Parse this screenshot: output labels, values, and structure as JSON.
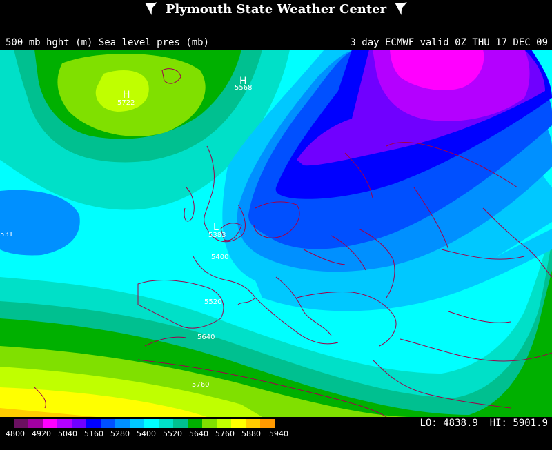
{
  "header": {
    "title": "Plymouth State Weather Center",
    "icon_left": "tornado-icon",
    "icon_right": "tornado-icon"
  },
  "subheader": {
    "left": "500 mb hght (m) Sea level pres (mb)",
    "right": "3 day ECMWF valid 0Z THU 17 DEC 09"
  },
  "map": {
    "field": "500 mb geopotential height",
    "region": "Europe / North Atlantic",
    "contour_labels": [
      {
        "text": "5722",
        "symbol": "H"
      },
      {
        "text": "5568",
        "symbol": "H"
      },
      {
        "text": "531",
        "symbol": ""
      },
      {
        "text": "5383",
        "symbol": "L"
      },
      {
        "text": "5400",
        "symbol": ""
      },
      {
        "text": "5520",
        "symbol": ""
      },
      {
        "text": "5640",
        "symbol": ""
      },
      {
        "text": "5760",
        "symbol": ""
      }
    ],
    "colors": {
      "background_land": "#00ffff",
      "borders": "#a0004a"
    }
  },
  "legend": {
    "ticks": [
      "4800",
      "4920",
      "5040",
      "5160",
      "5280",
      "5400",
      "5520",
      "5640",
      "5760",
      "5880",
      "5940"
    ],
    "colors": [
      "#6a1060",
      "#a000a0",
      "#ff00ff",
      "#b400ff",
      "#7000ff",
      "#0000ff",
      "#0050ff",
      "#0090ff",
      "#00c8ff",
      "#00ffff",
      "#00e0c8",
      "#00c090",
      "#00b000",
      "#80e000",
      "#c0ff00",
      "#ffff00",
      "#ffcc00",
      "#ff9900"
    ]
  },
  "stats": {
    "lo_label": "LO:",
    "lo_value": "4838.9",
    "hi_label": "HI:",
    "hi_value": "5901.9"
  }
}
